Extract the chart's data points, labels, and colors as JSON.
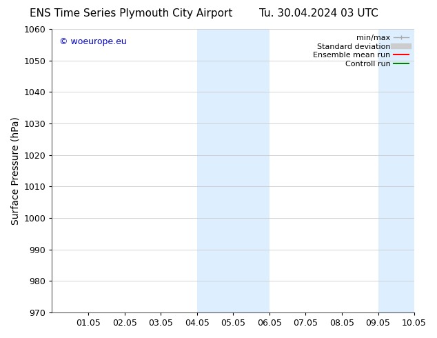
{
  "title_left": "ENS Time Series Plymouth City Airport",
  "title_right": "Tu. 30.04.2024 03 UTC",
  "ylabel": "Surface Pressure (hPa)",
  "ylim": [
    970,
    1060
  ],
  "yticks": [
    970,
    980,
    990,
    1000,
    1010,
    1020,
    1030,
    1040,
    1050,
    1060
  ],
  "xlim": [
    0,
    10
  ],
  "xtick_positions": [
    1,
    2,
    3,
    4,
    5,
    6,
    7,
    8,
    9,
    10
  ],
  "xtick_labels": [
    "01.05",
    "02.05",
    "03.05",
    "04.05",
    "05.05",
    "06.05",
    "07.05",
    "08.05",
    "09.05",
    "10.05"
  ],
  "shaded_regions": [
    {
      "xstart": 4.0,
      "xend": 6.0
    },
    {
      "xstart": 9.0,
      "xend": 10.0
    }
  ],
  "shaded_color": "#ddeeff",
  "watermark_text": "© woeurope.eu",
  "watermark_color": "#0000cc",
  "background_color": "#ffffff",
  "grid_color": "#cccccc",
  "tick_fontsize": 9,
  "label_fontsize": 10,
  "title_fontsize": 11,
  "legend_labels": [
    "min/max",
    "Standard deviation",
    "Ensemble mean run",
    "Controll run"
  ],
  "legend_colors": [
    "#aaaaaa",
    "#cccccc",
    "red",
    "green"
  ],
  "legend_lws": [
    1.0,
    6,
    1.5,
    1.5
  ]
}
